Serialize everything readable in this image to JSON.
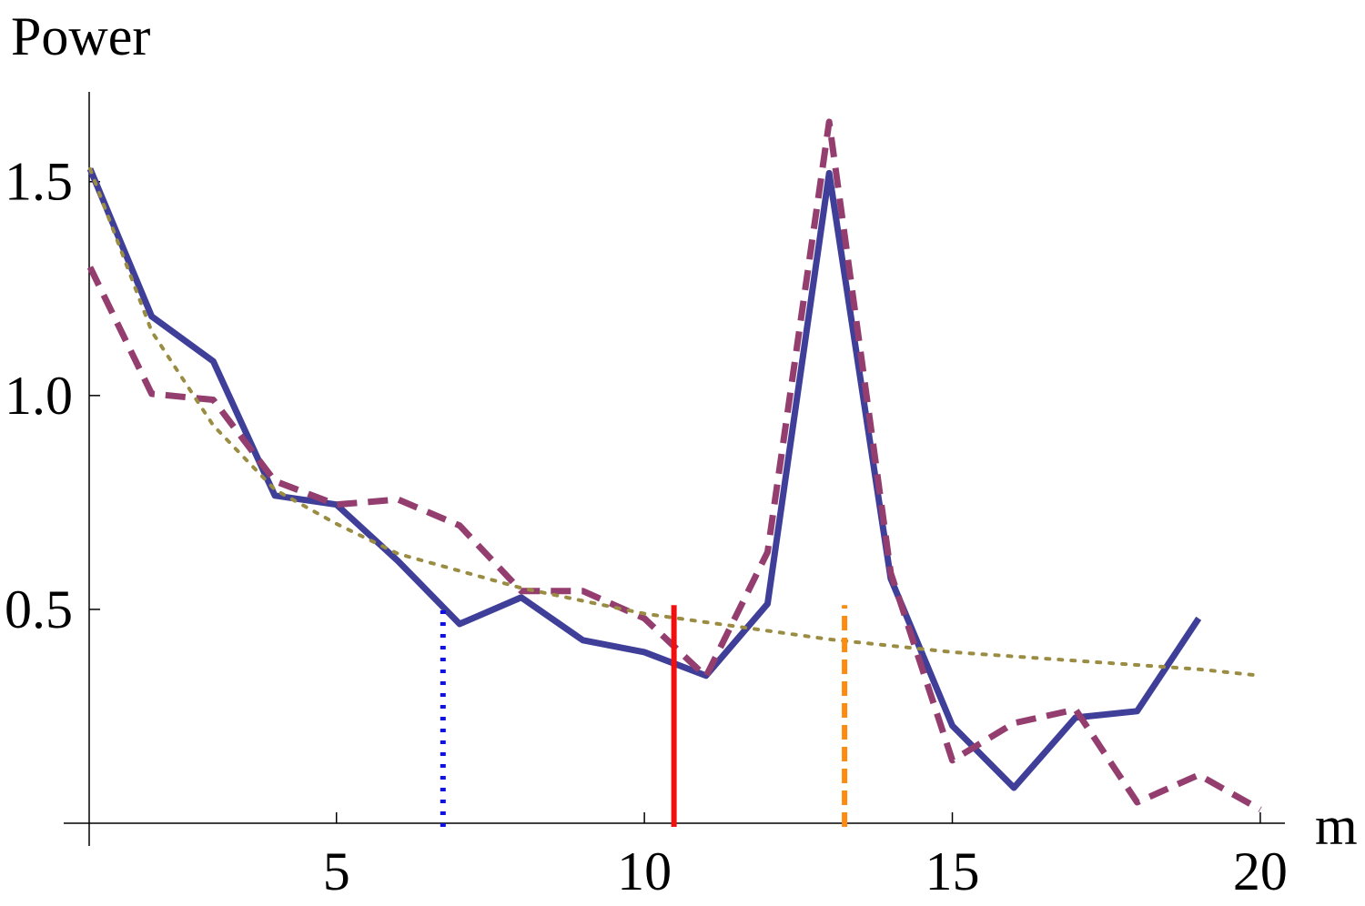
{
  "chart_data": {
    "type": "line",
    "y_label": "Power",
    "x_label": "m",
    "x": [
      1,
      2,
      3,
      4,
      5,
      6,
      7,
      8,
      9,
      10,
      11,
      12,
      13,
      14,
      15,
      16,
      17,
      18,
      19,
      20
    ],
    "series": [
      {
        "color": "#3f3f9a",
        "style": "solid",
        "values": [
          1.53,
          1.185,
          1.08,
          0.766,
          0.745,
          0.613,
          0.466,
          0.528,
          0.428,
          0.4,
          0.345,
          0.513,
          1.52,
          0.572,
          0.228,
          0.083,
          0.247,
          0.262,
          0.479,
          null
        ]
      },
      {
        "color": "#943d6f",
        "style": "dashed",
        "values": [
          1.3,
          1.004,
          0.99,
          0.8,
          0.745,
          0.757,
          0.696,
          0.543,
          0.543,
          0.479,
          0.343,
          0.634,
          1.64,
          0.585,
          0.147,
          0.234,
          0.266,
          0.049,
          0.113,
          0.032
        ]
      },
      {
        "color": "#9a8d43",
        "style": "dotted",
        "values": [
          1.53,
          1.15,
          0.93,
          0.78,
          0.7,
          0.63,
          0.59,
          0.55,
          0.52,
          0.49,
          0.47,
          0.45,
          0.43,
          0.415,
          0.4,
          0.39,
          0.38,
          0.37,
          0.36,
          0.345
        ]
      }
    ],
    "markers": [
      {
        "x": 6.73,
        "y": 0.5,
        "color": "#1010e0",
        "style": "dotted"
      },
      {
        "x": 10.48,
        "y": 0.51,
        "color": "#f01010",
        "style": "solid"
      },
      {
        "x": 13.25,
        "y": 0.51,
        "color": "#ff8a10",
        "style": "dashed"
      }
    ],
    "xlim": [
      1,
      20.4
    ],
    "ylim": [
      0,
      1.71
    ],
    "xticks": [
      5,
      10,
      15,
      20
    ],
    "yticks": [
      0.5,
      {
        "value": 1.0,
        "label": "1.0"
      },
      1.5
    ]
  }
}
